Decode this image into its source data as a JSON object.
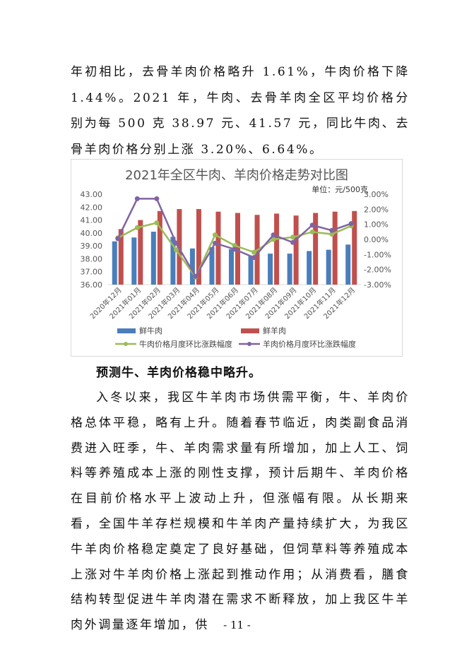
{
  "paragraph1": "年初相比，去骨羊肉价格略升 1.61%，牛肉价格下降 1.44%。2021 年，牛肉、去骨羊肉全区平均价格分别为每 500 克 38.97 元、41.57 元，同比牛肉、去骨羊肉价格分别上涨 3.20%、6.64%。",
  "heading": "预测牛、羊肉价格稳中略升。",
  "paragraph2": "入冬以来，我区牛羊肉市场供需平衡，牛、羊肉价格总体平稳，略有上升。随着春节临近，肉类副食品消费进入旺季，牛、羊肉需求量有所增加，加上人工、饲料等养殖成本上涨的刚性支撑，预计后期牛、羊肉价格在目前价格水平上波动上升，但涨幅有限。从长期来看，全国牛羊存栏规模和牛羊肉产量持续扩大，为我区牛羊肉价格稳定奠定了良好基础，但饲草料等养殖成本上涨对牛羊肉价格上涨起到推动作用；从消费看，膳食结构转型促进牛羊肉潜在需求不断释放，加上我区牛羊肉外调量逐年增加，供",
  "page_number": "- 11 -",
  "chart_data": {
    "type": "bar+line",
    "title": "2021年全区牛肉、羊肉价格走势对比图",
    "unit": "单位：元/500克",
    "categories": [
      "2020年12月",
      "2021年01月",
      "2021年02月",
      "2021年03月",
      "2021年04月",
      "2021年05月",
      "2021年06月",
      "2021年07月",
      "2021年08月",
      "2021年09月",
      "2021年10月",
      "2021年11月",
      "2021年12月"
    ],
    "y_left": {
      "min": 36,
      "max": 43,
      "ticks": [
        "36.00",
        "37.00",
        "38.00",
        "39.00",
        "40.00",
        "41.00",
        "42.00",
        "43.00"
      ]
    },
    "y_right": {
      "min": -3,
      "max": 3,
      "ticks": [
        "-3.00%",
        "-2.00%",
        "-1.00%",
        "0.00%",
        "1.00%",
        "2.00%",
        "3.00%"
      ]
    },
    "legend_position": "bottom",
    "series": [
      {
        "name": "鲜牛肉",
        "kind": "bar",
        "axis": "left",
        "color": "#4a7ebb",
        "values": [
          39.35,
          39.65,
          40.1,
          39.7,
          38.8,
          38.9,
          38.75,
          38.2,
          38.4,
          38.4,
          38.6,
          38.7,
          39.1
        ]
      },
      {
        "name": "鲜羊肉",
        "kind": "bar",
        "axis": "left",
        "color": "#c0504d",
        "values": [
          40.3,
          41.0,
          41.7,
          41.85,
          41.85,
          41.65,
          41.55,
          41.4,
          41.5,
          41.35,
          41.55,
          41.65,
          41.7
        ]
      },
      {
        "name": "牛肉价格月度环比涨跌幅度",
        "kind": "line",
        "axis": "right",
        "color": "#9bbb59",
        "values": [
          0.1,
          0.78,
          1.1,
          -0.7,
          -2.5,
          0.3,
          -0.4,
          -0.85,
          0.0,
          0.15,
          0.5,
          0.35,
          0.9
        ]
      },
      {
        "name": "羊肉价格月度环比涨跌幅度",
        "kind": "line",
        "axis": "right",
        "color": "#8064a2",
        "values": [
          0.05,
          2.7,
          2.7,
          -0.25,
          -2.45,
          -0.25,
          -0.65,
          -1.2,
          0.3,
          -0.2,
          0.95,
          0.6,
          1.05
        ]
      }
    ]
  }
}
